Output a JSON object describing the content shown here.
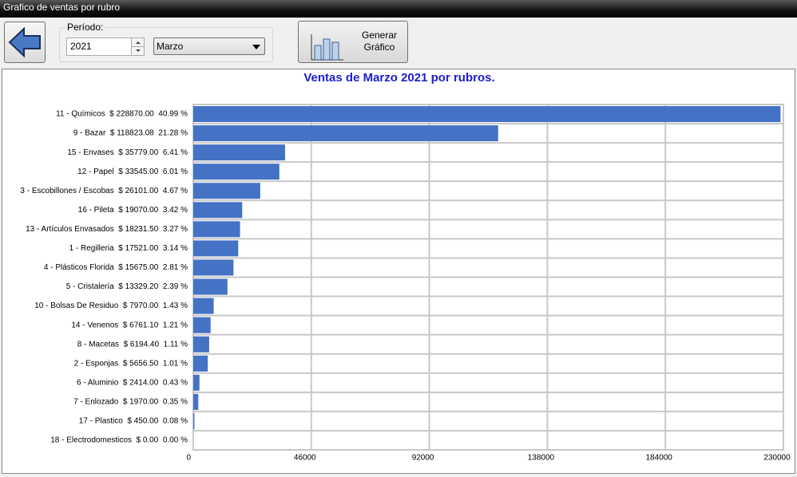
{
  "window": {
    "title": "Grafico de ventas por rubro"
  },
  "toolbar": {
    "period_label": "Período:",
    "year": "2021",
    "month": "Marzo",
    "button_lines": [
      "Generar",
      "Gráfico"
    ]
  },
  "chart_data": {
    "type": "bar",
    "orientation": "horizontal",
    "title": "Ventas de Marzo 2021 por rubros.",
    "categories": [
      "11 - Químicos  $ 228870.00  40.99 %",
      "9 - Bazar  $ 118823.08  21.28 %",
      "15 - Envases  $ 35779.00  6.41 %",
      "12 - Papel  $ 33545.00  6.01 %",
      "3 - Escobillones / Escobas  $ 26101.00  4.67 %",
      "16 - Pileta  $ 19070.00  3.42 %",
      "13 - Artículos Envasados  $ 18231.50  3.27 %",
      "1 - Regilleria  $ 17521.00  3.14 %",
      "4 - Plásticos Florida  $ 15675.00  2.81 %",
      "5 - Cristalería  $ 13329.20  2.39 %",
      "10 - Bolsas De Residuo  $ 7970.00  1.43 %",
      "14 - Venenos  $ 6761.10  1.21 %",
      "8 - Macetas  $ 6194.40  1.11 %",
      "2 - Esponjas  $ 5656.50  1.01 %",
      "6 - Aluminio  $ 2414.00  0.43 %",
      "7 - Enlozado  $ 1970.00  0.35 %",
      "17 - Plastico  $ 450.00  0.08 %",
      "18 - Electrodomesticos  $ 0.00  0.00 %"
    ],
    "values": [
      228870,
      118823.08,
      35779,
      33545,
      26101,
      19070,
      18231.5,
      17521,
      15675,
      13329.2,
      7970,
      6761.1,
      6194.4,
      5656.5,
      2414,
      1970,
      450,
      0
    ],
    "color": "#4472c4",
    "xlim": [
      0,
      230000
    ],
    "xticks": [
      0,
      46000,
      92000,
      138000,
      184000,
      230000
    ],
    "grid": true
  }
}
